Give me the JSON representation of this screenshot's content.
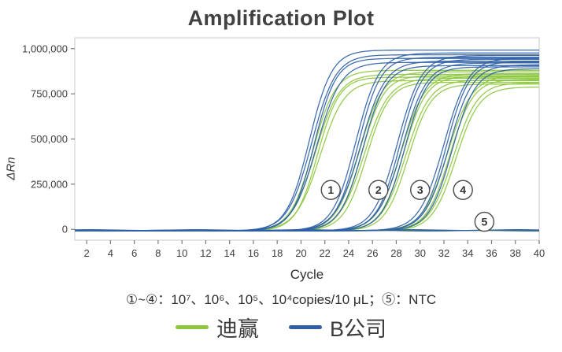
{
  "caption": "①~④：10⁷、10⁶、10⁵、10⁴copies/10 μL；⑤：NTC",
  "chart_data": {
    "type": "line",
    "title": "Amplification Plot",
    "xlabel": "Cycle",
    "ylabel": "ΔRn",
    "xlim": [
      1,
      40
    ],
    "ylim": [
      -60000,
      1060000
    ],
    "x_ticks": [
      2,
      4,
      6,
      8,
      10,
      12,
      14,
      16,
      18,
      20,
      22,
      24,
      26,
      28,
      30,
      32,
      34,
      36,
      38,
      40
    ],
    "y_ticks": [
      0,
      250000,
      500000,
      750000,
      1000000
    ],
    "baseline": -8000,
    "grid": false,
    "legend_position": "bottom",
    "axis_color": "#7a7a7a",
    "frame_color": "#c8c8c8",
    "series": [
      {
        "name": "迪赢",
        "color": "#8CC63E",
        "ntc": [
          -5000,
          -8000
        ],
        "curves": [
          {
            "ct": 21.0,
            "plateau": 880000,
            "k": 1.05
          },
          {
            "ct": 21.2,
            "plateau": 858000,
            "k": 1.0
          },
          {
            "ct": 21.4,
            "plateau": 842000,
            "k": 1.1
          },
          {
            "ct": 21.6,
            "plateau": 823000,
            "k": 0.98
          },
          {
            "ct": 24.9,
            "plateau": 872000,
            "k": 1.02
          },
          {
            "ct": 25.1,
            "plateau": 851000,
            "k": 1.08
          },
          {
            "ct": 25.3,
            "plateau": 836000,
            "k": 0.97
          },
          {
            "ct": 25.5,
            "plateau": 814000,
            "k": 1.05
          },
          {
            "ct": 28.4,
            "plateau": 862000,
            "k": 1.0
          },
          {
            "ct": 28.6,
            "plateau": 846000,
            "k": 1.06
          },
          {
            "ct": 28.8,
            "plateau": 827000,
            "k": 0.99
          },
          {
            "ct": 29.0,
            "plateau": 804000,
            "k": 1.04
          },
          {
            "ct": 32.3,
            "plateau": 852000,
            "k": 0.96
          },
          {
            "ct": 32.5,
            "plateau": 831000,
            "k": 1.03
          },
          {
            "ct": 32.8,
            "plateau": 812000,
            "k": 0.99
          },
          {
            "ct": 33.0,
            "plateau": 788000,
            "k": 1.02
          }
        ]
      },
      {
        "name": "B公司",
        "color": "#2E5FA7",
        "ntc": [
          -4000,
          -7000
        ],
        "curves": [
          {
            "ct": 20.7,
            "plateau": 992000,
            "k": 1.06
          },
          {
            "ct": 20.9,
            "plateau": 966000,
            "k": 1.0
          },
          {
            "ct": 21.1,
            "plateau": 946000,
            "k": 1.09
          },
          {
            "ct": 21.3,
            "plateau": 924000,
            "k": 0.98
          },
          {
            "ct": 24.6,
            "plateau": 976000,
            "k": 1.03
          },
          {
            "ct": 24.8,
            "plateau": 952000,
            "k": 1.07
          },
          {
            "ct": 25.0,
            "plateau": 931000,
            "k": 0.97
          },
          {
            "ct": 25.2,
            "plateau": 906000,
            "k": 1.04
          },
          {
            "ct": 28.1,
            "plateau": 962000,
            "k": 1.0
          },
          {
            "ct": 28.3,
            "plateau": 941000,
            "k": 1.05
          },
          {
            "ct": 28.5,
            "plateau": 921000,
            "k": 0.98
          },
          {
            "ct": 28.7,
            "plateau": 899000,
            "k": 1.06
          },
          {
            "ct": 32.0,
            "plateau": 949000,
            "k": 0.97
          },
          {
            "ct": 32.2,
            "plateau": 929000,
            "k": 1.04
          },
          {
            "ct": 32.4,
            "plateau": 911000,
            "k": 1.0
          },
          {
            "ct": 32.7,
            "plateau": 889000,
            "k": 1.03
          }
        ]
      }
    ],
    "annotations": [
      {
        "label": "1",
        "x": 22.5,
        "y": 218000
      },
      {
        "label": "2",
        "x": 26.5,
        "y": 218000
      },
      {
        "label": "3",
        "x": 30.0,
        "y": 218000
      },
      {
        "label": "4",
        "x": 33.6,
        "y": 218000
      },
      {
        "label": "5",
        "x": 35.4,
        "y": 42000
      }
    ]
  }
}
